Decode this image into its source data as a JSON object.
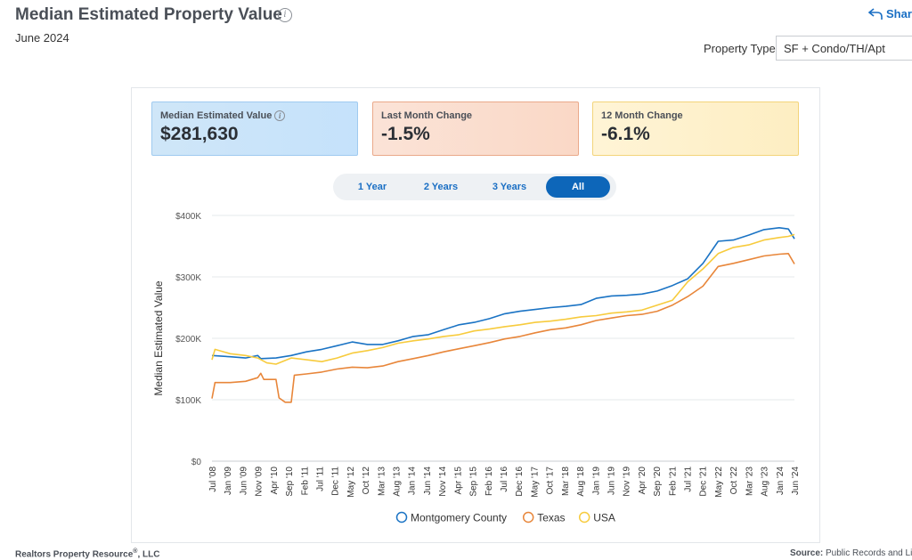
{
  "header": {
    "title": "Median Estimated Property Value",
    "subtitle": "June 2024",
    "share_label": "Share",
    "property_type_label": "Property Type",
    "property_type_value": "SF + Condo/TH/Apt"
  },
  "kpis": [
    {
      "label": "Median Estimated Value",
      "value": "$281,630"
    },
    {
      "label": "Last Month Change",
      "value": "-1.5%"
    },
    {
      "label": "12 Month Change",
      "value": "-6.1%"
    }
  ],
  "range_tabs": [
    "1 Year",
    "2 Years",
    "3 Years",
    "All"
  ],
  "active_tab": "All",
  "footer": {
    "left": "Realtors Property Resource",
    "left_mark": "®",
    "left_suffix": ", LLC",
    "source_label": "Source:",
    "source_value": "Public Records and Lis"
  },
  "colors": {
    "montgomery": "#1a73c4",
    "texas": "#e8863a",
    "usa": "#f7cb3d"
  },
  "chart_data": {
    "type": "line",
    "ylabel": "Median Estimated Value",
    "ylim": [
      0,
      400000
    ],
    "yticks": [
      "$0",
      "$100K",
      "$200K",
      "$300K",
      "$400K"
    ],
    "x_tick_labels": [
      "Jul '08",
      "Jan '09",
      "Jun '09",
      "Nov '09",
      "Apr '10",
      "Sep '10",
      "Feb '11",
      "Jul '11",
      "Dec '11",
      "May '12",
      "Oct '12",
      "Mar '13",
      "Aug '13",
      "Jan '14",
      "Jun '14",
      "Nov '14",
      "Apr '15",
      "Sep '15",
      "Feb '16",
      "Jul '16",
      "Dec '16",
      "May '17",
      "Oct '17",
      "Mar '18",
      "Aug '18",
      "Jan '19",
      "Jun '19",
      "Nov '19",
      "Apr '20",
      "Sep '20",
      "Feb '21",
      "Jul '21",
      "Dec '21",
      "May '22",
      "Oct '22",
      "Mar '23",
      "Aug '23",
      "Jan '24",
      "Jun '24"
    ],
    "legend": [
      "Montgomery County",
      "Texas",
      "USA"
    ],
    "legend_position": "bottom",
    "grid": true,
    "series": [
      {
        "name": "Montgomery County",
        "points": [
          [
            "2008-07",
            172000
          ],
          [
            "2009-01",
            170000
          ],
          [
            "2009-06",
            168000
          ],
          [
            "2009-10",
            172000
          ],
          [
            "2009-11",
            167000
          ],
          [
            "2010-04",
            168000
          ],
          [
            "2010-09",
            172000
          ],
          [
            "2011-02",
            178000
          ],
          [
            "2011-07",
            182000
          ],
          [
            "2011-12",
            188000
          ],
          [
            "2012-05",
            194000
          ],
          [
            "2012-10",
            190000
          ],
          [
            "2013-03",
            190000
          ],
          [
            "2013-08",
            196000
          ],
          [
            "2014-01",
            203000
          ],
          [
            "2014-06",
            206000
          ],
          [
            "2014-11",
            214000
          ],
          [
            "2015-04",
            222000
          ],
          [
            "2015-09",
            226000
          ],
          [
            "2016-02",
            232000
          ],
          [
            "2016-07",
            240000
          ],
          [
            "2016-12",
            244000
          ],
          [
            "2017-05",
            247000
          ],
          [
            "2017-10",
            250000
          ],
          [
            "2018-03",
            252000
          ],
          [
            "2018-08",
            255000
          ],
          [
            "2019-01",
            265000
          ],
          [
            "2019-06",
            269000
          ],
          [
            "2019-11",
            270000
          ],
          [
            "2020-04",
            272000
          ],
          [
            "2020-09",
            277000
          ],
          [
            "2021-02",
            286000
          ],
          [
            "2021-07",
            297000
          ],
          [
            "2021-12",
            322000
          ],
          [
            "2022-05",
            358000
          ],
          [
            "2022-10",
            360000
          ],
          [
            "2023-03",
            368000
          ],
          [
            "2023-08",
            377000
          ],
          [
            "2024-01",
            380000
          ],
          [
            "2024-04",
            378000
          ],
          [
            "2024-06",
            362000
          ]
        ]
      },
      {
        "name": "Texas",
        "points": [
          [
            "2008-07",
            102000
          ],
          [
            "2008-08",
            128000
          ],
          [
            "2009-01",
            128000
          ],
          [
            "2009-06",
            130000
          ],
          [
            "2009-10",
            136000
          ],
          [
            "2009-11",
            143000
          ],
          [
            "2009-12",
            133000
          ],
          [
            "2010-04",
            133000
          ],
          [
            "2010-05",
            103000
          ],
          [
            "2010-07",
            96000
          ],
          [
            "2010-09",
            96000
          ],
          [
            "2010-10",
            140000
          ],
          [
            "2011-02",
            142000
          ],
          [
            "2011-07",
            145000
          ],
          [
            "2011-12",
            150000
          ],
          [
            "2012-05",
            153000
          ],
          [
            "2012-10",
            152000
          ],
          [
            "2013-03",
            155000
          ],
          [
            "2013-08",
            162000
          ],
          [
            "2014-01",
            167000
          ],
          [
            "2014-06",
            172000
          ],
          [
            "2014-11",
            178000
          ],
          [
            "2015-04",
            183000
          ],
          [
            "2015-09",
            188000
          ],
          [
            "2016-02",
            193000
          ],
          [
            "2016-07",
            199000
          ],
          [
            "2016-12",
            203000
          ],
          [
            "2017-05",
            209000
          ],
          [
            "2017-10",
            214000
          ],
          [
            "2018-03",
            217000
          ],
          [
            "2018-08",
            222000
          ],
          [
            "2019-01",
            229000
          ],
          [
            "2019-06",
            233000
          ],
          [
            "2019-11",
            237000
          ],
          [
            "2020-04",
            239000
          ],
          [
            "2020-09",
            244000
          ],
          [
            "2021-02",
            254000
          ],
          [
            "2021-07",
            268000
          ],
          [
            "2021-12",
            285000
          ],
          [
            "2022-05",
            317000
          ],
          [
            "2022-10",
            322000
          ],
          [
            "2023-03",
            328000
          ],
          [
            "2023-08",
            334000
          ],
          [
            "2024-01",
            337000
          ],
          [
            "2024-04",
            338000
          ],
          [
            "2024-06",
            321000
          ]
        ]
      },
      {
        "name": "USA",
        "points": [
          [
            "2008-07",
            165000
          ],
          [
            "2008-08",
            182000
          ],
          [
            "2009-01",
            175000
          ],
          [
            "2009-06",
            172000
          ],
          [
            "2009-10",
            168000
          ],
          [
            "2010-01",
            160000
          ],
          [
            "2010-04",
            158000
          ],
          [
            "2010-09",
            168000
          ],
          [
            "2011-02",
            165000
          ],
          [
            "2011-07",
            162000
          ],
          [
            "2011-12",
            168000
          ],
          [
            "2012-05",
            176000
          ],
          [
            "2012-10",
            180000
          ],
          [
            "2013-03",
            185000
          ],
          [
            "2013-08",
            192000
          ],
          [
            "2014-01",
            196000
          ],
          [
            "2014-06",
            199000
          ],
          [
            "2014-11",
            203000
          ],
          [
            "2015-04",
            206000
          ],
          [
            "2015-09",
            212000
          ],
          [
            "2016-02",
            215000
          ],
          [
            "2016-07",
            219000
          ],
          [
            "2016-12",
            222000
          ],
          [
            "2017-05",
            226000
          ],
          [
            "2017-10",
            228000
          ],
          [
            "2018-03",
            231000
          ],
          [
            "2018-08",
            235000
          ],
          [
            "2019-01",
            237000
          ],
          [
            "2019-06",
            241000
          ],
          [
            "2019-11",
            243000
          ],
          [
            "2020-04",
            246000
          ],
          [
            "2020-09",
            254000
          ],
          [
            "2021-02",
            262000
          ],
          [
            "2021-07",
            292000
          ],
          [
            "2021-12",
            313000
          ],
          [
            "2022-05",
            338000
          ],
          [
            "2022-10",
            348000
          ],
          [
            "2023-03",
            352000
          ],
          [
            "2023-08",
            360000
          ],
          [
            "2024-01",
            364000
          ],
          [
            "2024-04",
            366000
          ],
          [
            "2024-06",
            369000
          ]
        ]
      }
    ]
  }
}
